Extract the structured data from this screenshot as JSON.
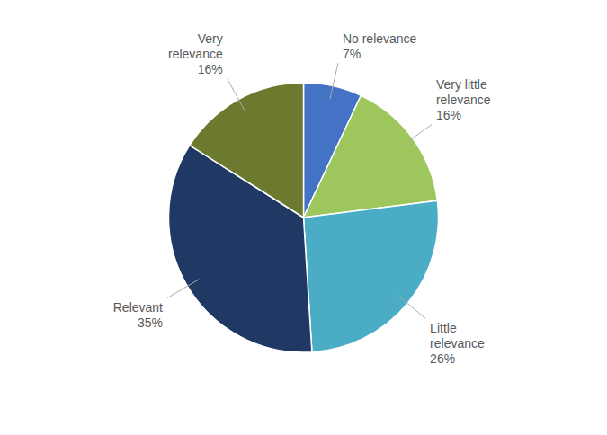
{
  "chart_data": {
    "type": "pie",
    "categories": [
      "No relevance",
      "Very little\nrelevance",
      "Little\nrelevance",
      "Relevant",
      "Very\nrelevance"
    ],
    "values": [
      7,
      16,
      26,
      35,
      16
    ],
    "value_labels": [
      "7%",
      "16%",
      "26%",
      "35%",
      "16%"
    ],
    "colors": [
      "#4472C4",
      "#9DC65C",
      "#4BACC6",
      "#1F3864",
      "#6B7A2E"
    ],
    "data_labels": true
  }
}
